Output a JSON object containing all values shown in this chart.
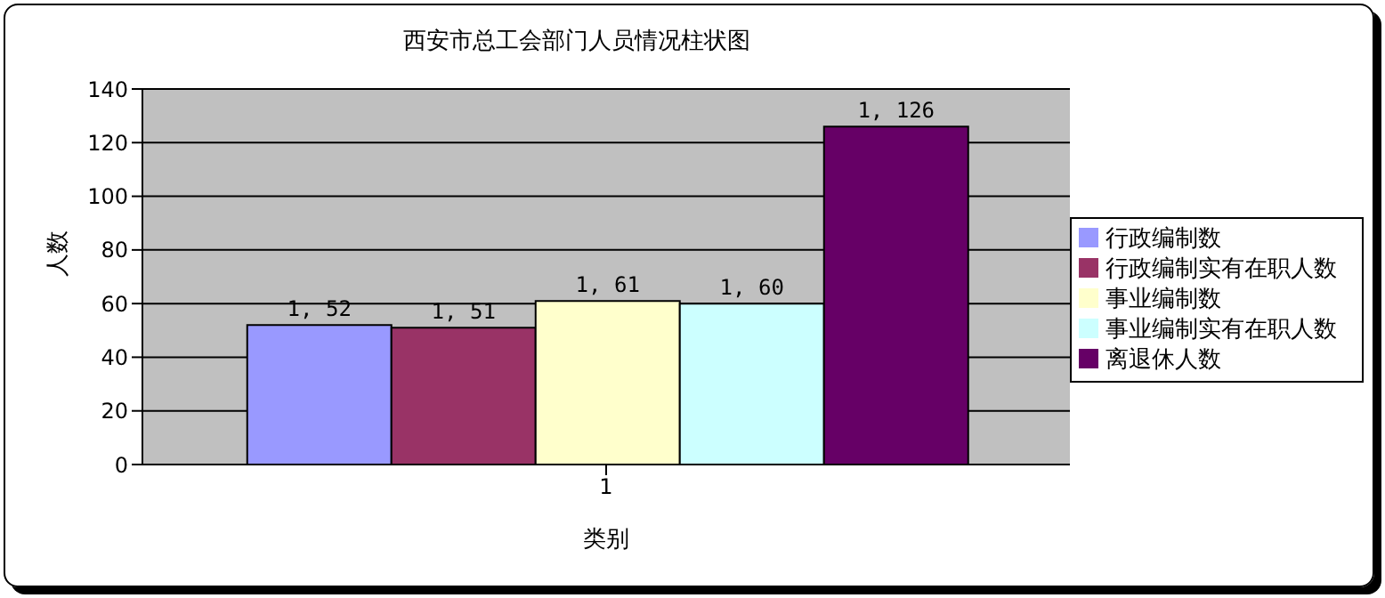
{
  "chart_data": {
    "type": "bar",
    "title": "西安市总工会部门人员情况柱状图",
    "xlabel": "类别",
    "ylabel": "人数",
    "categories": [
      "1"
    ],
    "series": [
      {
        "name": "行政编制数",
        "color": "#9999ff",
        "values": [
          52
        ],
        "value_labels": [
          "1, 52"
        ]
      },
      {
        "name": "行政编制实有在职人数",
        "color": "#993366",
        "values": [
          51
        ],
        "value_labels": [
          "1, 51"
        ]
      },
      {
        "name": "事业编制数",
        "color": "#ffffcc",
        "values": [
          61
        ],
        "value_labels": [
          "1, 61"
        ]
      },
      {
        "name": "事业编制实有在职人数",
        "color": "#ccffff",
        "values": [
          60
        ],
        "value_labels": [
          "1, 60"
        ]
      },
      {
        "name": "离退休人数",
        "color": "#660066",
        "values": [
          126
        ],
        "value_labels": [
          "1, 126"
        ]
      }
    ],
    "ylim": [
      0,
      140
    ],
    "yticks": [
      0,
      20,
      40,
      60,
      80,
      100,
      120,
      140
    ],
    "grid": "y",
    "legend": "right"
  }
}
